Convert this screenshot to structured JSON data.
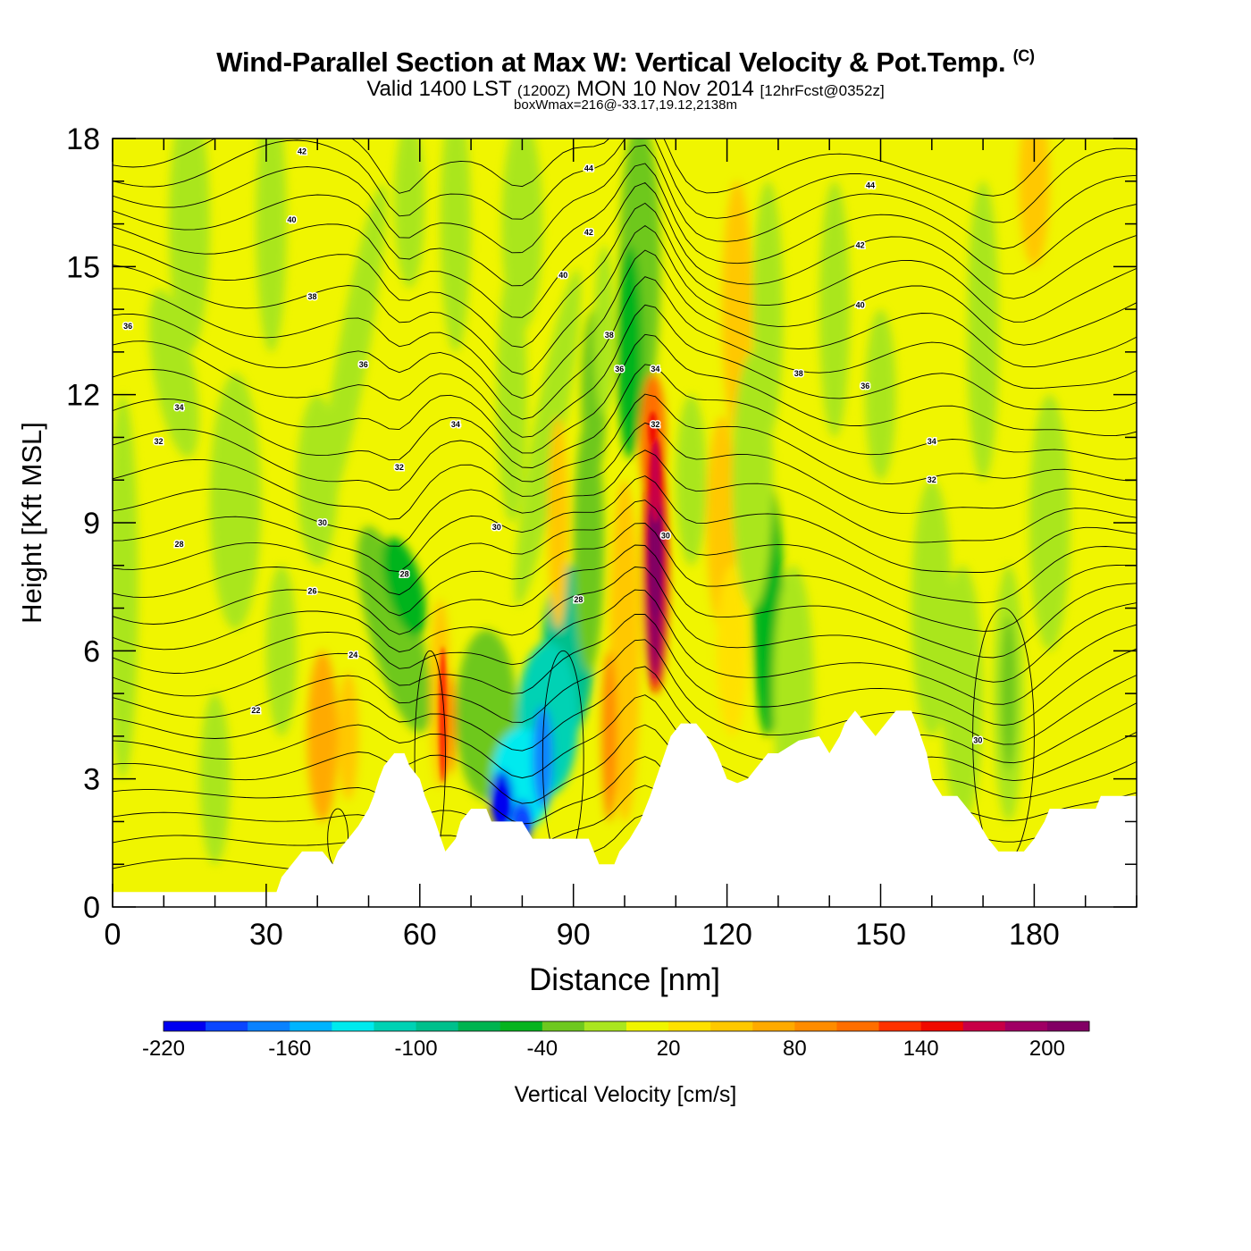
{
  "header": {
    "title": "Wind-Parallel Section at Max W: Vertical Velocity & Pot.Temp.",
    "copyright": "(C)",
    "valid_prefix": "Valid 1400 LST",
    "valid_utc": "(1200Z)",
    "valid_date": "MON 10 Nov 2014",
    "forecast": "[12hrFcst@0352z]",
    "box_wmax": "boxWmax=216@-33.17,19.12,2138m"
  },
  "chart_data": {
    "type": "heatmap",
    "xlabel": "Distance [nm]",
    "ylabel": "Height [Kft MSL]",
    "xlim": [
      0,
      200
    ],
    "ylim": [
      0,
      18
    ],
    "xticks": [
      0,
      30,
      60,
      90,
      120,
      150,
      180
    ],
    "yticks": [
      0,
      3,
      6,
      9,
      12,
      15,
      18
    ],
    "colorbar": {
      "label": "Vertical Velocity [cm/s]",
      "tick_labels": [
        "-220",
        "-160",
        "-100",
        "-40",
        "20",
        "80",
        "140",
        "200"
      ],
      "tick_values": [
        -220,
        -160,
        -100,
        -40,
        20,
        80,
        140,
        200
      ],
      "range": [
        -220,
        220
      ],
      "colors": [
        "#0000f0",
        "#0a46ff",
        "#0a82ff",
        "#00b4ff",
        "#00eaee",
        "#00d2b4",
        "#00c08c",
        "#00b450",
        "#06b41e",
        "#6ec81e",
        "#aae61e",
        "#f0f500",
        "#ffe100",
        "#ffc800",
        "#ffaa00",
        "#ff8c00",
        "#ff6e00",
        "#ff3200",
        "#f00a00",
        "#c80046",
        "#a00064",
        "#820064"
      ]
    },
    "terrain_kft": [
      [
        0,
        0.35
      ],
      [
        32,
        0.35
      ],
      [
        33,
        0.7
      ],
      [
        35,
        1.0
      ],
      [
        37,
        1.3
      ],
      [
        41,
        1.3
      ],
      [
        43,
        1.0
      ],
      [
        44,
        1.3
      ],
      [
        46,
        1.6
      ],
      [
        48,
        1.9
      ],
      [
        50,
        2.3
      ],
      [
        51,
        2.6
      ],
      [
        52,
        3.0
      ],
      [
        53,
        3.3
      ],
      [
        55,
        3.6
      ],
      [
        57,
        3.6
      ],
      [
        58,
        3.3
      ],
      [
        60,
        3.0
      ],
      [
        61,
        2.6
      ],
      [
        62,
        2.3
      ],
      [
        63,
        2.0
      ],
      [
        65,
        1.3
      ],
      [
        67,
        1.6
      ],
      [
        68,
        2.0
      ],
      [
        70,
        2.3
      ],
      [
        73,
        2.3
      ],
      [
        74,
        2.0
      ],
      [
        80,
        2.0
      ],
      [
        82,
        1.6
      ],
      [
        91,
        1.6
      ],
      [
        93,
        1.6
      ],
      [
        95,
        1.0
      ],
      [
        98,
        1.0
      ],
      [
        99,
        1.3
      ],
      [
        101,
        1.6
      ],
      [
        103,
        2.0
      ],
      [
        105,
        2.6
      ],
      [
        107,
        3.3
      ],
      [
        109,
        4.0
      ],
      [
        111,
        4.3
      ],
      [
        114,
        4.3
      ],
      [
        116,
        4.0
      ],
      [
        118,
        3.6
      ],
      [
        119,
        3.3
      ],
      [
        120,
        3.0
      ],
      [
        122,
        2.9
      ],
      [
        124,
        3.0
      ],
      [
        126,
        3.3
      ],
      [
        128,
        3.6
      ],
      [
        130,
        3.6
      ],
      [
        134,
        3.9
      ],
      [
        138,
        4.0
      ],
      [
        140,
        3.6
      ],
      [
        142,
        4.0
      ],
      [
        143,
        4.3
      ],
      [
        145,
        4.6
      ],
      [
        147,
        4.3
      ],
      [
        149,
        4.0
      ],
      [
        151,
        4.3
      ],
      [
        153,
        4.6
      ],
      [
        156,
        4.6
      ],
      [
        157,
        4.3
      ],
      [
        159,
        3.6
      ],
      [
        160,
        3.0
      ],
      [
        162,
        2.6
      ],
      [
        165,
        2.6
      ],
      [
        167,
        2.3
      ],
      [
        169,
        2.0
      ],
      [
        171,
        1.6
      ],
      [
        173,
        1.3
      ],
      [
        178,
        1.3
      ],
      [
        180,
        1.6
      ],
      [
        182,
        2.0
      ],
      [
        183,
        2.3
      ],
      [
        192,
        2.3
      ],
      [
        193,
        2.6
      ],
      [
        200,
        2.6
      ]
    ],
    "theta_contours": [
      {
        "level": 22,
        "label_pos": [
          28,
          4.6
        ]
      },
      {
        "level": 24,
        "label_pos": [
          47,
          5.9
        ]
      },
      {
        "level": 26,
        "label_pos": [
          39,
          7.4
        ]
      },
      {
        "level": 28,
        "label_pos": [
          13,
          8.5
        ]
      },
      {
        "level": 28,
        "label_pos": [
          57,
          7.8
        ]
      },
      {
        "level": 28,
        "label_pos": [
          91,
          7.2
        ]
      },
      {
        "level": 30,
        "label_pos": [
          41,
          9.0
        ]
      },
      {
        "level": 30,
        "label_pos": [
          75,
          8.9
        ]
      },
      {
        "level": 30,
        "label_pos": [
          108,
          8.7
        ]
      },
      {
        "level": 30,
        "label_pos": [
          169,
          3.9
        ]
      },
      {
        "level": 32,
        "label_pos": [
          9,
          10.9
        ]
      },
      {
        "level": 32,
        "label_pos": [
          56,
          10.3
        ]
      },
      {
        "level": 32,
        "label_pos": [
          106,
          11.3
        ]
      },
      {
        "level": 32,
        "label_pos": [
          160,
          10.0
        ]
      },
      {
        "level": 34,
        "label_pos": [
          13,
          11.7
        ]
      },
      {
        "level": 34,
        "label_pos": [
          67,
          11.3
        ]
      },
      {
        "level": 34,
        "label_pos": [
          106,
          12.6
        ]
      },
      {
        "level": 34,
        "label_pos": [
          160,
          10.9
        ]
      },
      {
        "level": 36,
        "label_pos": [
          3,
          13.6
        ]
      },
      {
        "level": 36,
        "label_pos": [
          49,
          12.7
        ]
      },
      {
        "level": 36,
        "label_pos": [
          99,
          12.6
        ]
      },
      {
        "level": 36,
        "label_pos": [
          147,
          12.2
        ]
      },
      {
        "level": 38,
        "label_pos": [
          39,
          14.3
        ]
      },
      {
        "level": 38,
        "label_pos": [
          97,
          13.4
        ]
      },
      {
        "level": 38,
        "label_pos": [
          134,
          12.5
        ]
      },
      {
        "level": 40,
        "label_pos": [
          35,
          16.1
        ]
      },
      {
        "level": 40,
        "label_pos": [
          88,
          14.8
        ]
      },
      {
        "level": 40,
        "label_pos": [
          146,
          14.1
        ]
      },
      {
        "level": 42,
        "label_pos": [
          37,
          17.7
        ]
      },
      {
        "level": 42,
        "label_pos": [
          93,
          15.8
        ]
      },
      {
        "level": 42,
        "label_pos": [
          146,
          15.5
        ]
      },
      {
        "level": 44,
        "label_pos": [
          93,
          17.3
        ]
      },
      {
        "level": 44,
        "label_pos": [
          148,
          16.9
        ]
      }
    ]
  }
}
